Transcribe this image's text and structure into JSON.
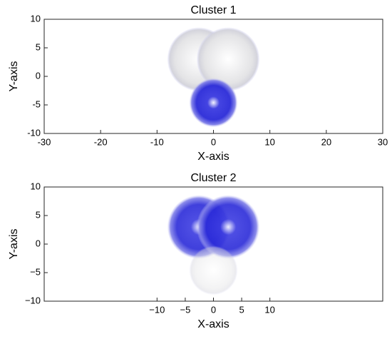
{
  "chart_data": [
    {
      "type": "scatter",
      "title": "Cluster 1",
      "xlabel": "X-axis",
      "ylabel": "Y-axis",
      "xlim": [
        -30,
        30
      ],
      "xticks": [
        -30,
        -20,
        -10,
        0,
        10,
        20,
        30
      ],
      "ylim": [
        -10,
        10
      ],
      "yticks": [
        -10,
        -5,
        0,
        5,
        10
      ]
    },
    {
      "type": "scatter",
      "title": "Cluster 2",
      "xlabel": "X-axis",
      "ylabel": "Y-axis",
      "xlim": [
        -30,
        30
      ],
      "xticks": [
        {
          "value": -10,
          "label": "−10"
        },
        {
          "value": -5,
          "label": "−5"
        },
        0,
        5,
        10
      ],
      "ylim": [
        -10,
        10
      ],
      "yticks": [
        {
          "value": -10,
          "label": "−10"
        },
        {
          "value": -5,
          "label": "−5"
        },
        0,
        5,
        10
      ]
    }
  ]
}
